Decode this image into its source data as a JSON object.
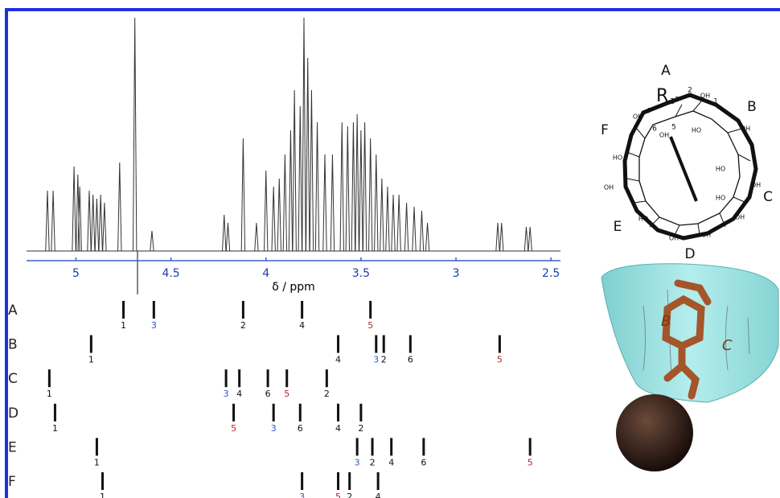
{
  "chart_data": {
    "type": "spectrum",
    "x_label": "δ / ppm",
    "xlim": [
      5.26,
      2.45
    ],
    "xticks": [
      5,
      4.5,
      4,
      3.5,
      3,
      2.5
    ],
    "ylim": [
      0,
      290
    ],
    "color": "#333333",
    "axis_color": "#3a5fcd",
    "peaks": {
      "x": [
        5.15,
        5.12,
        5.01,
        4.99,
        4.98,
        4.93,
        4.91,
        4.89,
        4.87,
        4.85,
        4.77,
        4.69,
        4.6,
        4.22,
        4.2,
        4.12,
        4.05,
        4.0,
        3.96,
        3.93,
        3.9,
        3.87,
        3.85,
        3.82,
        3.8,
        3.78,
        3.76,
        3.73,
        3.69,
        3.65,
        3.6,
        3.57,
        3.54,
        3.52,
        3.5,
        3.48,
        3.45,
        3.42,
        3.39,
        3.36,
        3.33,
        3.3,
        3.26,
        3.22,
        3.18,
        3.15,
        2.78,
        2.76,
        2.63,
        2.61
      ],
      "values": [
        75,
        75,
        105,
        95,
        80,
        75,
        70,
        65,
        70,
        60,
        110,
        290,
        25,
        45,
        35,
        140,
        35,
        100,
        80,
        90,
        120,
        150,
        200,
        180,
        290,
        240,
        200,
        160,
        120,
        120,
        160,
        155,
        160,
        170,
        150,
        160,
        140,
        120,
        90,
        80,
        70,
        70,
        60,
        55,
        50,
        35,
        35,
        35,
        30,
        30
      ]
    },
    "assignments": [
      {
        "name": "A",
        "x": [
          4.75,
          4.59,
          4.12,
          3.81,
          3.45
        ],
        "labels": [
          "1",
          "3",
          "2",
          "4",
          "5"
        ]
      },
      {
        "name": "B",
        "x": [
          4.92,
          3.62,
          3.42,
          3.38,
          3.24,
          2.77
        ],
        "labels": [
          "1",
          "4",
          "3",
          "2",
          "6",
          "5"
        ]
      },
      {
        "name": "C",
        "x": [
          5.14,
          4.21,
          4.14,
          3.99,
          3.89,
          3.68
        ],
        "labels": [
          "1",
          "3",
          "4",
          "6",
          "5",
          "2"
        ]
      },
      {
        "name": "D",
        "x": [
          5.11,
          4.17,
          3.96,
          3.82,
          3.62,
          3.5
        ],
        "labels": [
          "1",
          "5",
          "3",
          "6",
          "4",
          "2"
        ]
      },
      {
        "name": "E",
        "x": [
          4.89,
          3.52,
          3.44,
          3.34,
          3.17,
          2.61
        ],
        "labels": [
          "1",
          "3",
          "2",
          "4",
          "6",
          "5"
        ]
      },
      {
        "name": "F",
        "x": [
          4.86,
          3.81,
          3.62,
          3.56,
          3.41
        ],
        "labels": [
          "1",
          "3",
          "5",
          "2",
          "4"
        ]
      }
    ],
    "label_colors": {
      "3": "#2f55d4",
      "5": "#b5262a"
    }
  },
  "diagram": {
    "units": [
      "A",
      "B",
      "C",
      "D",
      "E",
      "F"
    ],
    "R": "R",
    "R_sub": "3",
    "atom_numbers": [
      "2",
      "1",
      "3",
      "4",
      "6",
      "5"
    ],
    "hydroxyls": [
      "OH",
      "OH",
      "HO",
      "OH",
      "OH",
      "HO",
      "OH",
      "HO",
      "OH",
      "OH",
      "OH",
      "HO",
      "OH",
      "HO"
    ]
  },
  "model": {
    "labels": [
      "B",
      "C"
    ]
  }
}
